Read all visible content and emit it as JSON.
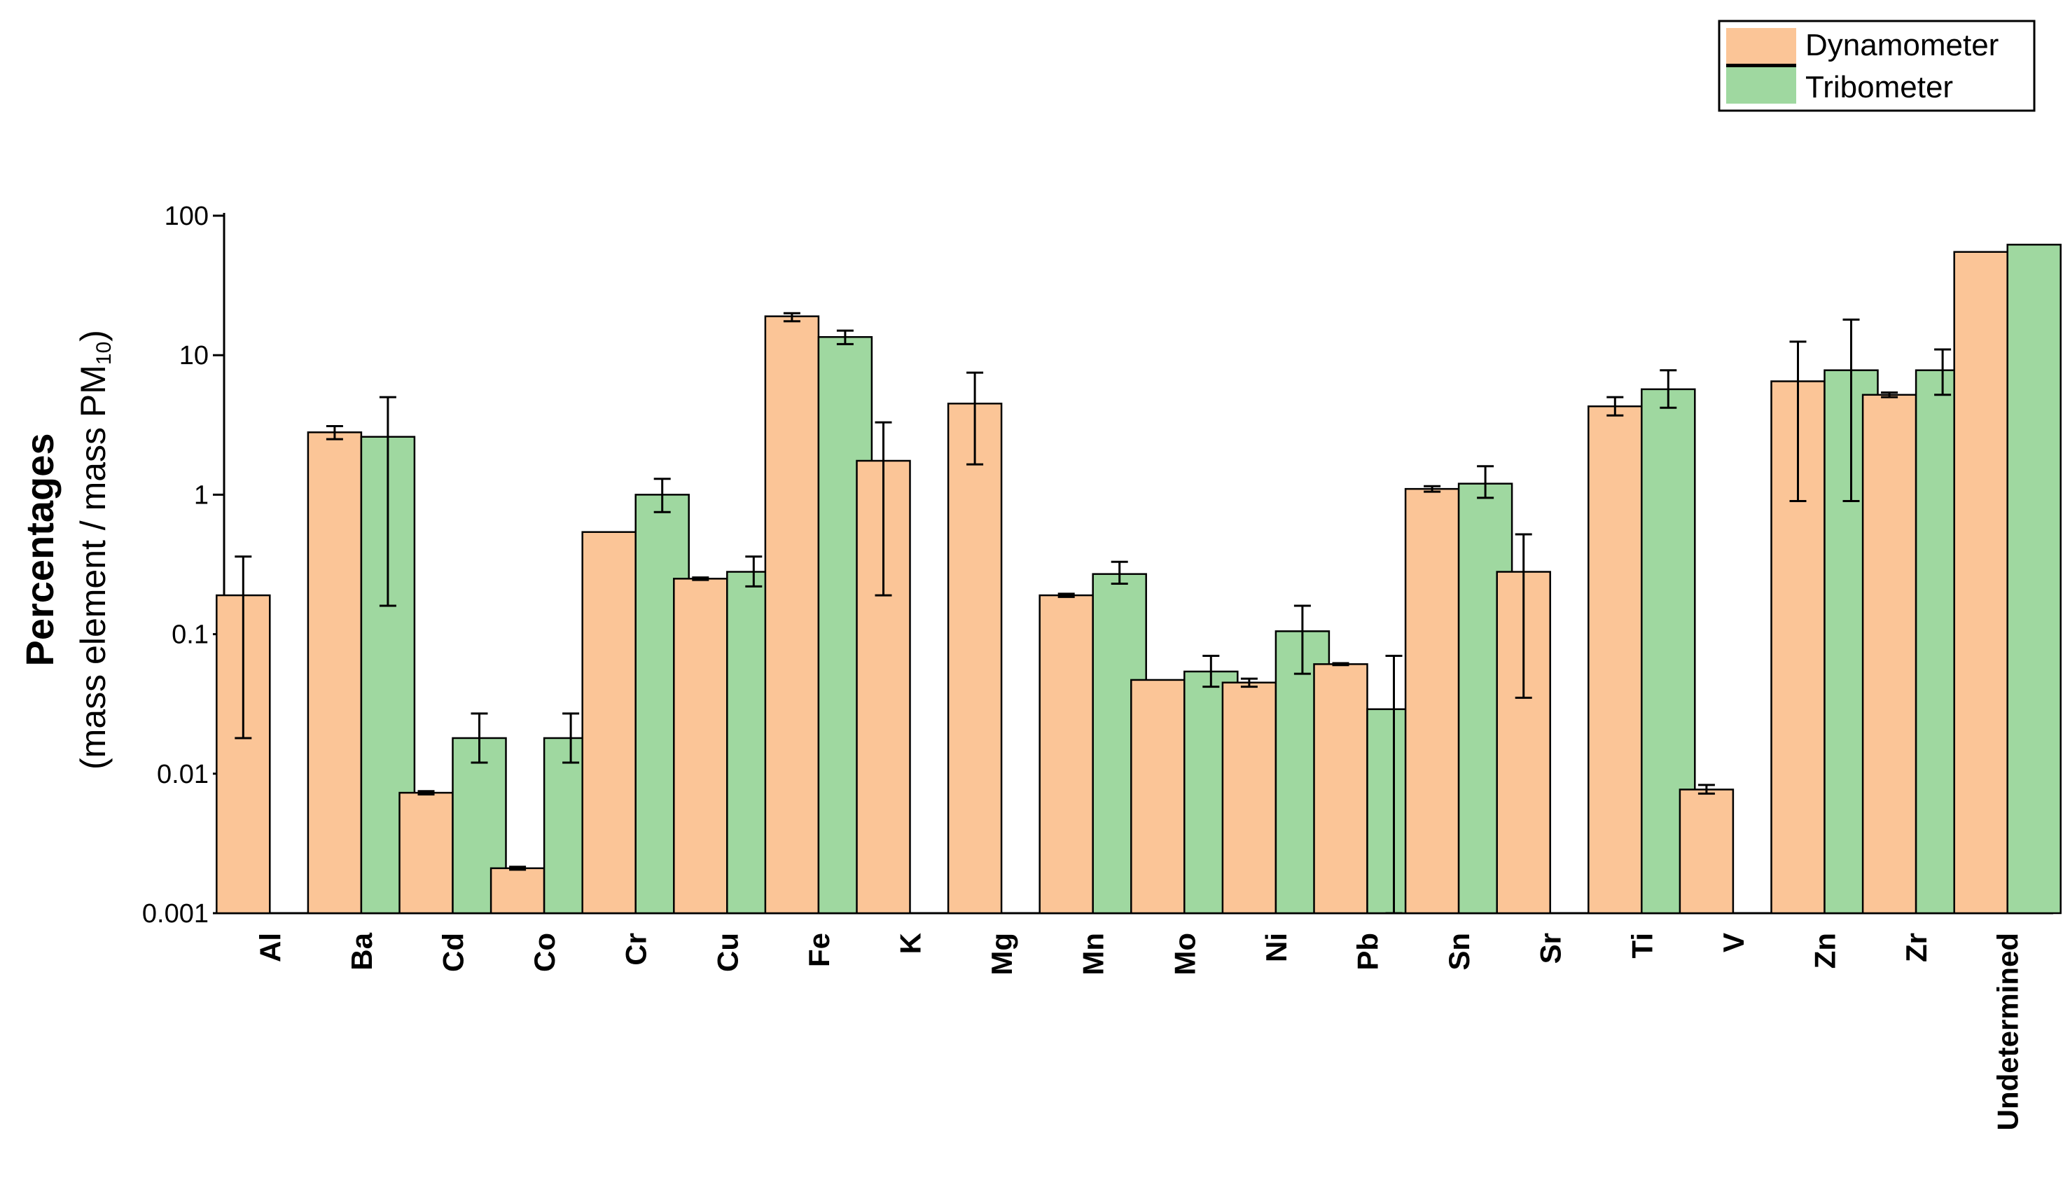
{
  "chart_data": {
    "type": "bar",
    "yscale": "log",
    "ylim": [
      0.001,
      100
    ],
    "yticks": [
      "0.001",
      "0.01",
      "0.1",
      "1",
      "10",
      "100"
    ],
    "ylabel_main": "Percentages",
    "ylabel_sub_prefix": "(mass element / mass PM",
    "ylabel_sub_subscript": "10",
    "ylabel_sub_suffix": ")",
    "legend_position": "top-right",
    "categories": [
      "Al",
      "Ba",
      "Cd",
      "Co",
      "Cr",
      "Cu",
      "Fe",
      "K",
      "Mg",
      "Mn",
      "Mo",
      "Ni",
      "Pb",
      "Sn",
      "Sr",
      "Ti",
      "V",
      "Zn",
      "Zr",
      "Undetermined"
    ],
    "series": [
      {
        "name": "Dynamometer",
        "color": "#FBC597",
        "values": [
          0.19,
          2.8,
          0.0073,
          0.0021,
          0.54,
          0.25,
          19,
          1.75,
          4.5,
          0.19,
          0.047,
          0.045,
          0.061,
          1.1,
          0.28,
          4.3,
          0.0077,
          6.5,
          5.2,
          55
        ],
        "err_low": [
          0.018,
          2.5,
          0.0071,
          0.00205,
          0.54,
          0.245,
          17.5,
          0.19,
          1.65,
          0.185,
          0.047,
          0.042,
          0.06,
          1.05,
          0.035,
          3.7,
          0.0072,
          0.9,
          5.0,
          55
        ],
        "err_high": [
          0.36,
          3.1,
          0.0075,
          0.00215,
          0.54,
          0.255,
          20,
          3.3,
          7.5,
          0.195,
          0.047,
          0.048,
          0.062,
          1.15,
          0.52,
          5.0,
          0.0083,
          12.5,
          5.4,
          55
        ]
      },
      {
        "name": "Tribometer",
        "color": "#9FD8A0",
        "values": [
          null,
          2.6,
          0.018,
          0.018,
          1.0,
          0.28,
          13.5,
          null,
          null,
          0.27,
          0.054,
          0.105,
          0.029,
          1.2,
          null,
          5.7,
          null,
          7.8,
          7.8,
          62
        ],
        "err_low": [
          null,
          0.16,
          0.012,
          0.012,
          0.75,
          0.22,
          12,
          null,
          null,
          0.23,
          0.042,
          0.052,
          0.001,
          0.95,
          null,
          4.2,
          null,
          0.9,
          5.2,
          62
        ],
        "err_high": [
          null,
          5.0,
          0.027,
          0.027,
          1.3,
          0.36,
          15,
          null,
          null,
          0.33,
          0.07,
          0.16,
          0.07,
          1.6,
          null,
          7.8,
          null,
          18,
          11,
          62
        ]
      }
    ]
  }
}
